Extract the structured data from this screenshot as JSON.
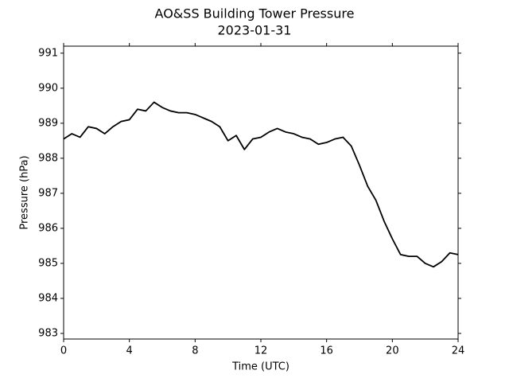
{
  "chart_data": {
    "type": "line",
    "title": "AO&SS Building Tower Pressure",
    "subtitle": "2023-01-31",
    "x_label": "Time (UTC)",
    "y_label": "Pressure (hPa)",
    "x": [
      0,
      0.5,
      1,
      1.5,
      2,
      2.5,
      3,
      3.5,
      4,
      4.5,
      5,
      5.5,
      6,
      6.5,
      7,
      7.5,
      8,
      8.5,
      9,
      9.5,
      10,
      10.5,
      11,
      11.5,
      12,
      12.5,
      13,
      13.5,
      14,
      14.5,
      15,
      15.5,
      16,
      16.5,
      17,
      17.5,
      18,
      18.5,
      19,
      19.5,
      20,
      20.5,
      21,
      21.5,
      22,
      22.5,
      23,
      23.5,
      24
    ],
    "values": [
      988.55,
      988.7,
      988.6,
      988.9,
      988.85,
      988.7,
      988.9,
      989.05,
      989.1,
      989.4,
      989.35,
      989.6,
      989.45,
      989.35,
      989.3,
      989.3,
      989.25,
      989.15,
      989.05,
      988.9,
      988.5,
      988.65,
      988.25,
      988.55,
      988.6,
      988.75,
      988.85,
      988.75,
      988.7,
      988.6,
      988.55,
      988.4,
      988.45,
      988.55,
      988.6,
      988.35,
      987.8,
      987.2,
      986.8,
      986.2,
      985.7,
      985.25,
      985.2,
      985.2,
      985.0,
      984.9,
      985.05,
      985.3,
      985.25
    ],
    "color": "#000000",
    "xlim": [
      0,
      24
    ],
    "xticks": [
      0,
      4,
      8,
      12,
      16,
      20,
      24
    ],
    "ylim": [
      982.84,
      991.2
    ],
    "yticks": [
      983,
      984,
      985,
      986,
      987,
      988,
      989,
      990,
      991
    ],
    "grid": false
  }
}
